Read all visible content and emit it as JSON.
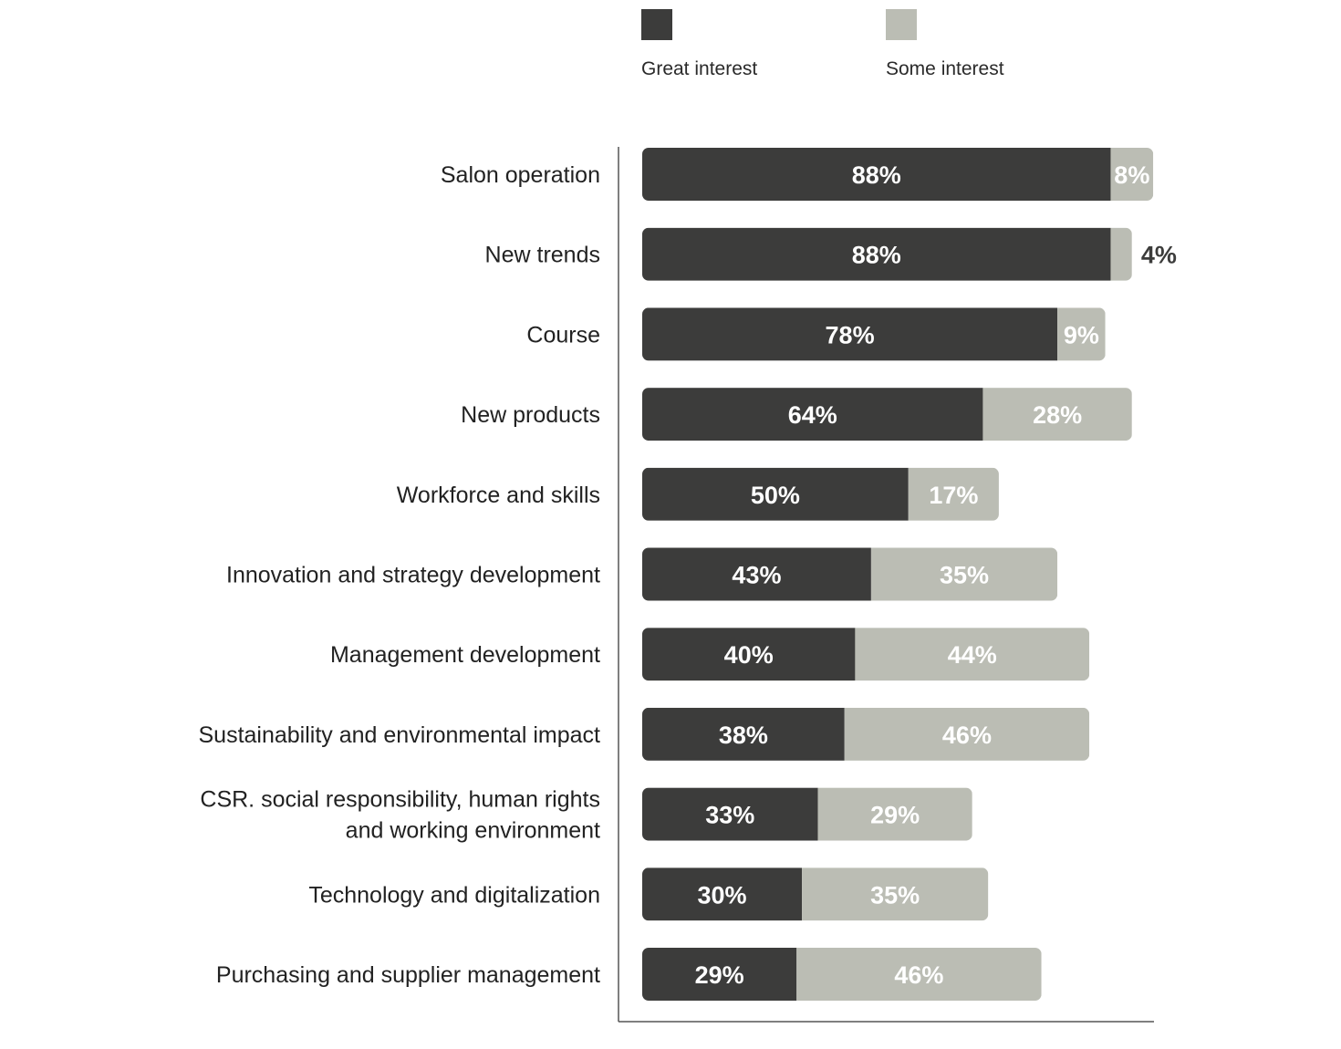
{
  "chart_data": {
    "type": "bar",
    "orientation": "horizontal",
    "stacked": true,
    "categories": [
      "Salon operation",
      "New trends",
      "Course",
      "New products",
      "Workforce and skills",
      "Innovation and strategy development",
      "Management development",
      "Sustainability and environmental impact",
      "CSR. social responsibility, human rights and working environment",
      "Technology and digitalization",
      "Purchasing and supplier management"
    ],
    "category_lines": [
      [
        "Salon operation"
      ],
      [
        "New trends"
      ],
      [
        "Course"
      ],
      [
        "New products"
      ],
      [
        "Workforce and skills"
      ],
      [
        "Innovation and strategy development"
      ],
      [
        "Management development"
      ],
      [
        "Sustainability and environmental impact"
      ],
      [
        "CSR. social responsibility, human rights",
        "and working environment"
      ],
      [
        "Technology and digitalization"
      ],
      [
        "Purchasing and supplier management"
      ]
    ],
    "series": [
      {
        "name": "Great interest",
        "color": "#3c3c3b",
        "label_color": "#ffffff",
        "values": [
          88,
          88,
          78,
          64,
          50,
          43,
          40,
          38,
          33,
          30,
          29
        ],
        "labels": [
          "88%",
          "88%",
          "78%",
          "64%",
          "50%",
          "43%",
          "40%",
          "38%",
          "33%",
          "30%",
          "29%"
        ]
      },
      {
        "name": "Some interest",
        "color": "#bbbdb4",
        "label_color": "#ffffff",
        "values": [
          8,
          4,
          9,
          28,
          17,
          35,
          44,
          46,
          29,
          35,
          46
        ],
        "labels": [
          "8%",
          "4%",
          "9%",
          "28%",
          "17%",
          "35%",
          "44%",
          "46%",
          "29%",
          "35%",
          "46%"
        ]
      }
    ],
    "outside_label_color": "#3c3c3b",
    "axis_color": "#555555",
    "legend_position": "top",
    "xlim": [
      0,
      100
    ],
    "grid": false,
    "title": "",
    "xlabel": "",
    "ylabel": ""
  }
}
